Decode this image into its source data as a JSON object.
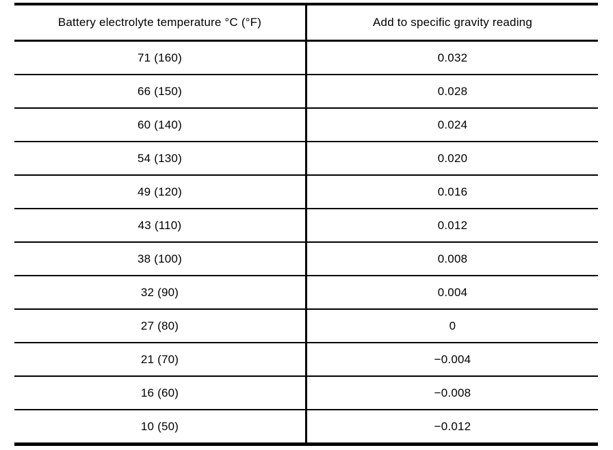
{
  "table": {
    "headers": [
      "Battery electrolyte temperature °C (°F)",
      "Add to specific gravity reading"
    ],
    "rows": [
      {
        "temp": "71 (160)",
        "correction": "0.032"
      },
      {
        "temp": "66 (150)",
        "correction": "0.028"
      },
      {
        "temp": "60 (140)",
        "correction": "0.024"
      },
      {
        "temp": "54 (130)",
        "correction": "0.020"
      },
      {
        "temp": "49 (120)",
        "correction": "0.016"
      },
      {
        "temp": "43 (110)",
        "correction": "0.012"
      },
      {
        "temp": "38 (100)",
        "correction": "0.008"
      },
      {
        "temp": "32 (90)",
        "correction": "0.004"
      },
      {
        "temp": "27 (80)",
        "correction": "0"
      },
      {
        "temp": "21 (70)",
        "correction": "−0.004"
      },
      {
        "temp": "16 (60)",
        "correction": "−0.008"
      },
      {
        "temp": "10 (50)",
        "correction": "−0.012"
      }
    ],
    "colors": {
      "border": "#000000",
      "text": "#000000",
      "background": "#ffffff"
    }
  }
}
